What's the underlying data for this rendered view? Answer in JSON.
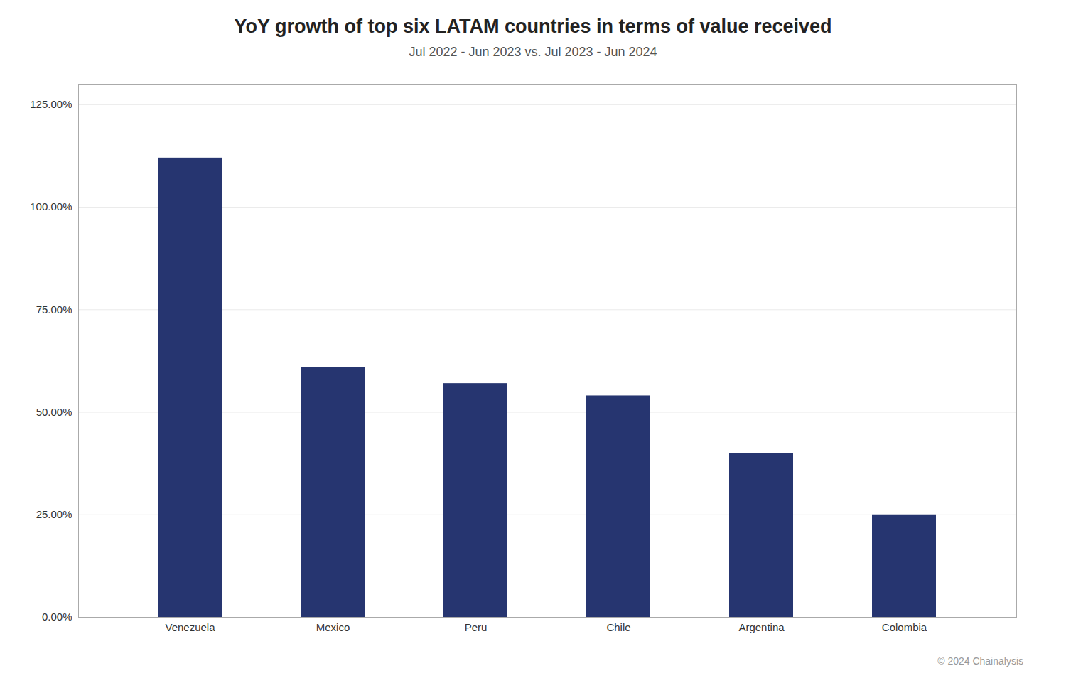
{
  "chart_data": {
    "type": "bar",
    "title": "YoY growth of top six LATAM countries in terms of value received",
    "subtitle": "Jul 2022 - Jun 2023 vs. Jul 2023 - Jun 2024",
    "footnote": "© 2024 Chainalysis",
    "categories": [
      "Venezuela",
      "Mexico",
      "Peru",
      "Chile",
      "Argentina",
      "Colombia"
    ],
    "values": [
      1.12,
      0.61,
      0.57,
      0.54,
      0.4,
      0.25
    ],
    "color": "#263570",
    "ylim": [
      0,
      1.3
    ],
    "yticks": [
      {
        "value": 0.0,
        "label": "0.00%"
      },
      {
        "value": 0.25,
        "label": "25.00%"
      },
      {
        "value": 0.5,
        "label": "50.00%"
      },
      {
        "value": 0.75,
        "label": "75.00%"
      },
      {
        "value": 1.0,
        "label": "100.00%"
      },
      {
        "value": 1.25,
        "label": "125.00%"
      }
    ],
    "grid": true
  }
}
